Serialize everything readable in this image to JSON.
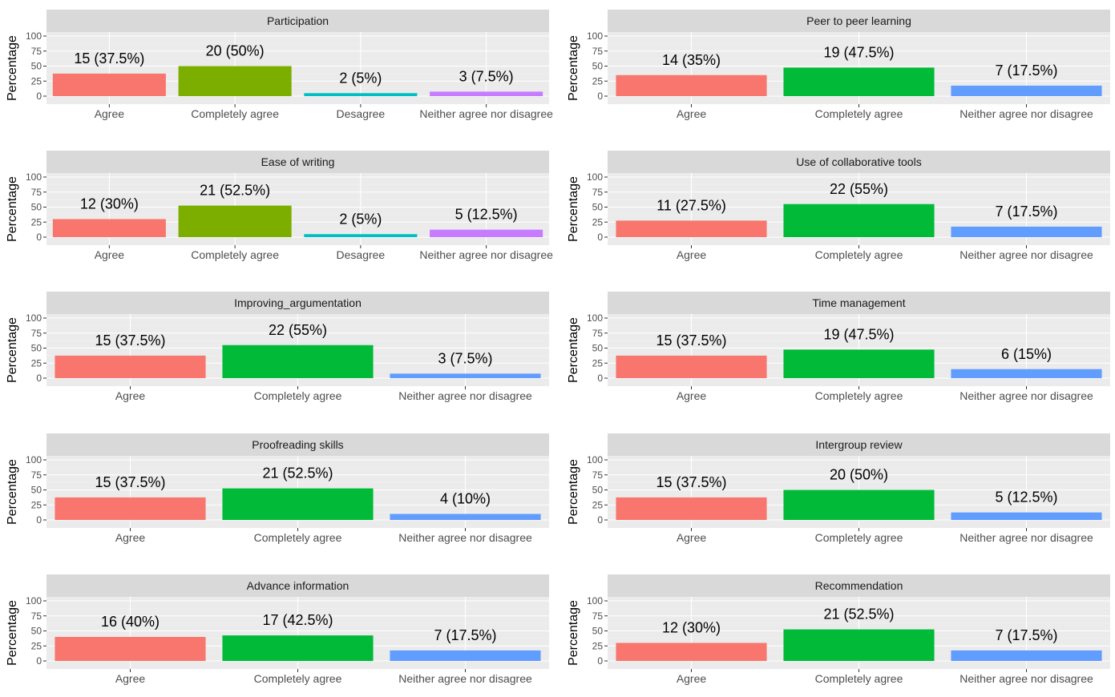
{
  "colors": {
    "panel_bg": "#ebebeb",
    "strip_bg": "#d9d9d9",
    "Agree": "#F8766D",
    "Completely agree": "#00BA38",
    "Neither agree nor disagree": "#619CFF",
    "Completely agree (4-level)": "#7CAE00",
    "Desagree (4-level)": "#00BFC4",
    "Neither agree nor disagree (4-level)": "#C77CFF"
  },
  "chart_data": [
    {
      "type": "bar",
      "title": "Participation",
      "ylabel": "Percentage",
      "ylim": [
        0,
        100
      ],
      "yticks": [
        0,
        25,
        50,
        75,
        100
      ],
      "categories": [
        "Agree",
        "Completely agree",
        "Desagree",
        "Neither agree nor disagree"
      ],
      "values": [
        37.5,
        50,
        5,
        7.5
      ],
      "labels": [
        "15 (37.5%)",
        "20 (50%)",
        "2 (5%)",
        "3 (7.5%)"
      ],
      "colors": [
        "#F8766D",
        "#7CAE00",
        "#00BFC4",
        "#C77CFF"
      ]
    },
    {
      "type": "bar",
      "title": "Peer to peer learning",
      "ylabel": "Percentage",
      "ylim": [
        0,
        100
      ],
      "yticks": [
        0,
        25,
        50,
        75,
        100
      ],
      "categories": [
        "Agree",
        "Completely agree",
        "Neither agree nor disagree"
      ],
      "values": [
        35,
        47.5,
        17.5
      ],
      "labels": [
        "14 (35%)",
        "19 (47.5%)",
        "7 (17.5%)"
      ],
      "colors": [
        "#F8766D",
        "#00BA38",
        "#619CFF"
      ]
    },
    {
      "type": "bar",
      "title": "Ease of writing",
      "ylabel": "Percentage",
      "ylim": [
        0,
        100
      ],
      "yticks": [
        0,
        25,
        50,
        75,
        100
      ],
      "categories": [
        "Agree",
        "Completely agree",
        "Desagree",
        "Neither agree nor disagree"
      ],
      "values": [
        30,
        52.5,
        5,
        12.5
      ],
      "labels": [
        "12 (30%)",
        "21 (52.5%)",
        "2 (5%)",
        "5 (12.5%)"
      ],
      "colors": [
        "#F8766D",
        "#7CAE00",
        "#00BFC4",
        "#C77CFF"
      ]
    },
    {
      "type": "bar",
      "title": "Use of collaborative tools",
      "ylabel": "Percentage",
      "ylim": [
        0,
        100
      ],
      "yticks": [
        0,
        25,
        50,
        75,
        100
      ],
      "categories": [
        "Agree",
        "Completely agree",
        "Neither agree nor disagree"
      ],
      "values": [
        27.5,
        55,
        17.5
      ],
      "labels": [
        "11 (27.5%)",
        "22 (55%)",
        "7 (17.5%)"
      ],
      "colors": [
        "#F8766D",
        "#00BA38",
        "#619CFF"
      ]
    },
    {
      "type": "bar",
      "title": "Improving_argumentation",
      "ylabel": "Percentage",
      "ylim": [
        0,
        100
      ],
      "yticks": [
        0,
        25,
        50,
        75,
        100
      ],
      "categories": [
        "Agree",
        "Completely agree",
        "Neither agree nor disagree"
      ],
      "values": [
        37.5,
        55,
        7.5
      ],
      "labels": [
        "15 (37.5%)",
        "22 (55%)",
        "3 (7.5%)"
      ],
      "colors": [
        "#F8766D",
        "#00BA38",
        "#619CFF"
      ]
    },
    {
      "type": "bar",
      "title": "Time management",
      "ylabel": "Percentage",
      "ylim": [
        0,
        100
      ],
      "yticks": [
        0,
        25,
        50,
        75,
        100
      ],
      "categories": [
        "Agree",
        "Completely agree",
        "Neither agree nor disagree"
      ],
      "values": [
        37.5,
        47.5,
        15
      ],
      "labels": [
        "15 (37.5%)",
        "19 (47.5%)",
        "6 (15%)"
      ],
      "colors": [
        "#F8766D",
        "#00BA38",
        "#619CFF"
      ]
    },
    {
      "type": "bar",
      "title": "Proofreading skills",
      "ylabel": "Percentage",
      "ylim": [
        0,
        100
      ],
      "yticks": [
        0,
        25,
        50,
        75,
        100
      ],
      "categories": [
        "Agree",
        "Completely agree",
        "Neither agree nor disagree"
      ],
      "values": [
        37.5,
        52.5,
        10
      ],
      "labels": [
        "15 (37.5%)",
        "21 (52.5%)",
        "4 (10%)"
      ],
      "colors": [
        "#F8766D",
        "#00BA38",
        "#619CFF"
      ]
    },
    {
      "type": "bar",
      "title": "Intergroup review",
      "ylabel": "Percentage",
      "ylim": [
        0,
        100
      ],
      "yticks": [
        0,
        25,
        50,
        75,
        100
      ],
      "categories": [
        "Agree",
        "Completely agree",
        "Neither agree nor disagree"
      ],
      "values": [
        37.5,
        50,
        12.5
      ],
      "labels": [
        "15 (37.5%)",
        "20 (50%)",
        "5 (12.5%)"
      ],
      "colors": [
        "#F8766D",
        "#00BA38",
        "#619CFF"
      ]
    },
    {
      "type": "bar",
      "title": "Advance information",
      "ylabel": "Percentage",
      "ylim": [
        0,
        100
      ],
      "yticks": [
        0,
        25,
        50,
        75,
        100
      ],
      "categories": [
        "Agree",
        "Completely agree",
        "Neither agree nor disagree"
      ],
      "values": [
        40,
        42.5,
        17.5
      ],
      "labels": [
        "16 (40%)",
        "17 (42.5%)",
        "7 (17.5%)"
      ],
      "colors": [
        "#F8766D",
        "#00BA38",
        "#619CFF"
      ]
    },
    {
      "type": "bar",
      "title": "Recommendation",
      "ylabel": "Percentage",
      "ylim": [
        0,
        100
      ],
      "yticks": [
        0,
        25,
        50,
        75,
        100
      ],
      "categories": [
        "Agree",
        "Completely agree",
        "Neither agree nor disagree"
      ],
      "values": [
        30,
        52.5,
        17.5
      ],
      "labels": [
        "12 (30%)",
        "21 (52.5%)",
        "7 (17.5%)"
      ],
      "colors": [
        "#F8766D",
        "#00BA38",
        "#619CFF"
      ]
    }
  ]
}
